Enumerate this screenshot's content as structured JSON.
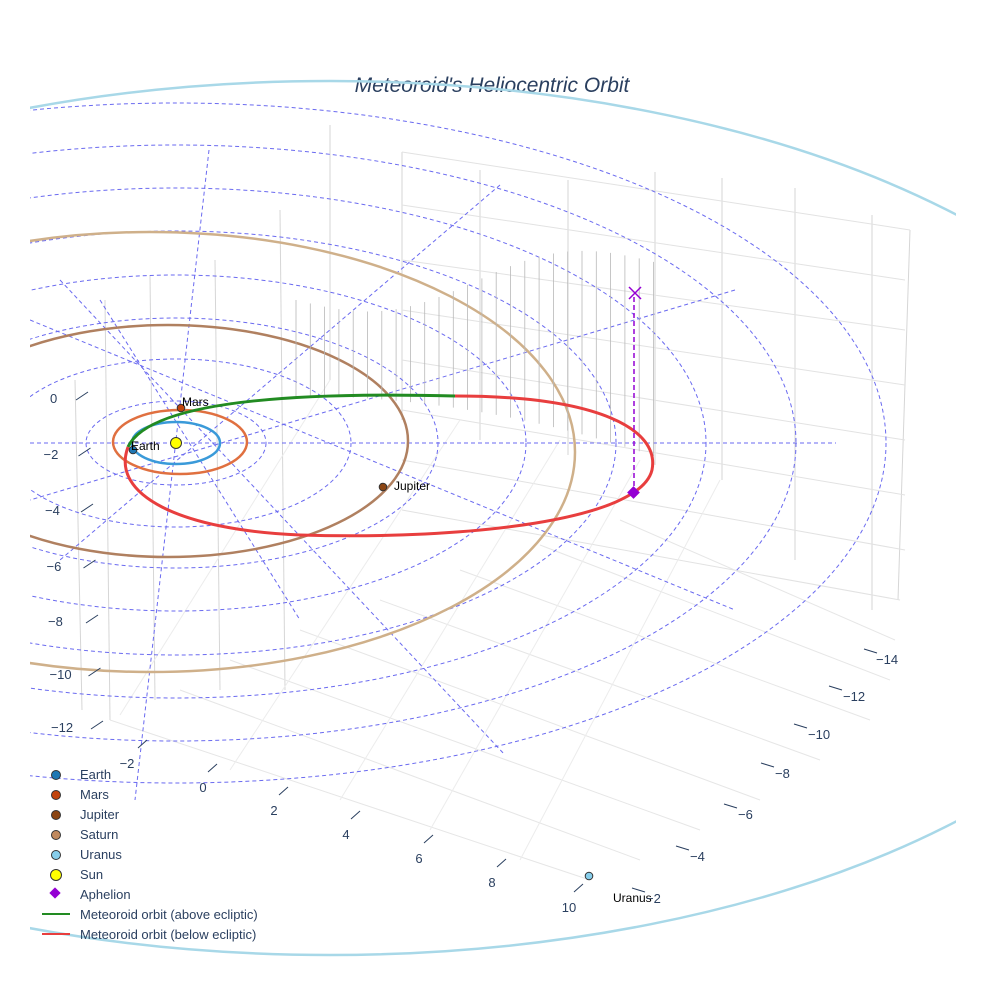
{
  "title": "Meteoroid's Heliocentric Orbit",
  "chart_data": {
    "type": "scatter3d",
    "title": "Meteoroid's Heliocentric Orbit",
    "x_ticks": [
      "−2",
      "0",
      "2",
      "4",
      "6",
      "8",
      "10"
    ],
    "y_ticks": [
      "−14",
      "−12",
      "−10",
      "−8",
      "−6",
      "−4",
      "−2"
    ],
    "z_ticks": [
      "0",
      "−2",
      "−4",
      "−6",
      "−8",
      "−10",
      "−12"
    ],
    "planets": [
      {
        "name": "Earth",
        "label": "Earth",
        "color": "#1f77b4",
        "radius_au": 1.0
      },
      {
        "name": "Mars",
        "label": "Mars",
        "color": "#c1440e",
        "radius_au": 1.52
      },
      {
        "name": "Jupiter",
        "label": "Jupiter",
        "color": "#8b4513",
        "radius_au": 5.2
      },
      {
        "name": "Saturn",
        "label": "",
        "color": "#c0895e",
        "radius_au": 9.58
      },
      {
        "name": "Uranus",
        "label": "Uranus",
        "color": "#87ceeb",
        "radius_au": 19.2
      }
    ],
    "sun": {
      "name": "Sun",
      "color": "#ffff00"
    },
    "aphelion": {
      "name": "Aphelion",
      "color": "#9400d3"
    },
    "orbit_series": [
      {
        "name": "Meteoroid orbit (above ecliptic)",
        "color": "#228b22"
      },
      {
        "name": "Meteoroid orbit (below ecliptic)",
        "color": "#e83e3e"
      }
    ],
    "orbit_colors": {
      "earth": "#3a9ad9",
      "mars": "#e07040",
      "jupiter": "#b08060",
      "saturn": "#cfb08a",
      "uranus": "#a8d8e8"
    }
  },
  "legend": [
    {
      "label": "Earth",
      "color": "#1f77b4",
      "symbol": "dot"
    },
    {
      "label": "Mars",
      "color": "#c1440e",
      "symbol": "dot"
    },
    {
      "label": "Jupiter",
      "color": "#8b4513",
      "symbol": "dot"
    },
    {
      "label": "Saturn",
      "color": "#c0895e",
      "symbol": "dot"
    },
    {
      "label": "Uranus",
      "color": "#87ceeb",
      "symbol": "dot"
    },
    {
      "label": "Sun",
      "color": "#ffff00",
      "symbol": "big-dot"
    },
    {
      "label": "Aphelion",
      "color": "#9400d3",
      "symbol": "diamond"
    },
    {
      "label": "Meteoroid orbit (above ecliptic)",
      "color": "#228b22",
      "symbol": "line"
    },
    {
      "label": "Meteoroid orbit (below ecliptic)",
      "color": "#e83e3e",
      "symbol": "line"
    }
  ]
}
